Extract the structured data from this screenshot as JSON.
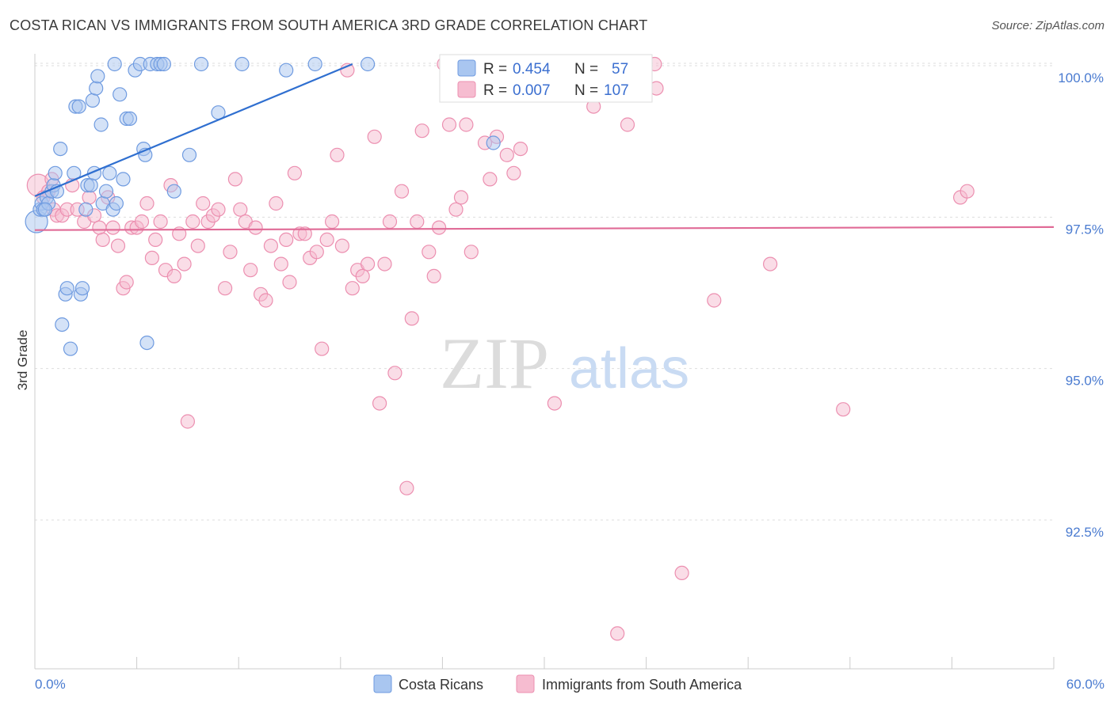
{
  "title": "COSTA RICAN VS IMMIGRANTS FROM SOUTH AMERICA 3RD GRADE CORRELATION CHART",
  "source": "Source: ZipAtlas.com",
  "watermark": {
    "part1": "ZIP",
    "part2": "atlas"
  },
  "colors": {
    "blue_fill": "#a9c6f0",
    "blue_stroke": "#6f9be0",
    "blue_line": "#2f6fd0",
    "pink_fill": "#f6bcd0",
    "pink_stroke": "#ec8fb0",
    "pink_line": "#e06a96",
    "axis_text": "#4a7bd0",
    "grid": "#dddddd"
  },
  "legend": {
    "rows": [
      {
        "r_label": "R = ",
        "r_value": "0.454",
        "n_label": "N = ",
        "n_value": "57"
      },
      {
        "r_label": "R = ",
        "r_value": "0.007",
        "n_label": "N = ",
        "n_value": "107"
      }
    ]
  },
  "bottom_legend": [
    "Costa Ricans",
    "Immigrants from South America"
  ],
  "chart_data": {
    "type": "scatter",
    "title": "COSTA RICAN VS IMMIGRANTS FROM SOUTH AMERICA 3RD GRADE CORRELATION CHART",
    "xlabel": "",
    "ylabel": "3rd Grade",
    "xlim": [
      0,
      60
    ],
    "ylim": [
      90.2,
      100.5
    ],
    "x_tick_labels": [
      "0.0%",
      "60.0%"
    ],
    "y_ticks": [
      92.5,
      95.0,
      97.5,
      100.0
    ],
    "y_tick_labels": [
      "92.5%",
      "95.0%",
      "97.5%",
      "100.0%"
    ],
    "series": [
      {
        "name": "Costa Ricans",
        "R": 0.454,
        "N": 57,
        "trend": [
          [
            0,
            97.82
          ],
          [
            18.7,
            100.0
          ]
        ],
        "points": [
          [
            0.1,
            97.4
          ],
          [
            0.3,
            97.6
          ],
          [
            0.4,
            97.7
          ],
          [
            0.5,
            97.6
          ],
          [
            0.7,
            97.8
          ],
          [
            0.8,
            97.7
          ],
          [
            1.0,
            97.9
          ],
          [
            1.1,
            98.0
          ],
          [
            1.2,
            98.2
          ],
          [
            1.5,
            98.6
          ],
          [
            1.6,
            95.7
          ],
          [
            1.8,
            96.2
          ],
          [
            1.9,
            96.3
          ],
          [
            2.1,
            95.3
          ],
          [
            2.3,
            98.2
          ],
          [
            2.4,
            99.3
          ],
          [
            2.6,
            99.3
          ],
          [
            2.7,
            96.2
          ],
          [
            2.8,
            96.3
          ],
          [
            3.0,
            97.6
          ],
          [
            3.1,
            98.0
          ],
          [
            3.3,
            98.0
          ],
          [
            3.4,
            99.4
          ],
          [
            3.5,
            98.2
          ],
          [
            3.6,
            99.6
          ],
          [
            3.7,
            99.8
          ],
          [
            3.9,
            99.0
          ],
          [
            4.0,
            97.7
          ],
          [
            4.2,
            97.9
          ],
          [
            4.4,
            98.2
          ],
          [
            4.6,
            97.6
          ],
          [
            4.8,
            97.7
          ],
          [
            4.7,
            100.0
          ],
          [
            5.0,
            99.5
          ],
          [
            5.2,
            98.1
          ],
          [
            5.4,
            99.1
          ],
          [
            5.6,
            99.1
          ],
          [
            5.9,
            99.9
          ],
          [
            6.2,
            100.0
          ],
          [
            6.4,
            98.6
          ],
          [
            6.5,
            98.5
          ],
          [
            6.6,
            95.4
          ],
          [
            6.8,
            100.0
          ],
          [
            7.2,
            100.0
          ],
          [
            7.4,
            100.0
          ],
          [
            7.6,
            100.0
          ],
          [
            8.2,
            97.9
          ],
          [
            9.8,
            100.0
          ],
          [
            9.1,
            98.5
          ],
          [
            10.8,
            99.2
          ],
          [
            12.2,
            100.0
          ],
          [
            14.8,
            99.9
          ],
          [
            16.5,
            100.0
          ],
          [
            19.6,
            100.0
          ],
          [
            27.0,
            98.7
          ],
          [
            0.6,
            97.6
          ],
          [
            1.3,
            97.9
          ]
        ]
      },
      {
        "name": "Immigrants from South America",
        "R": 0.007,
        "N": 107,
        "trend": [
          [
            0,
            97.26
          ],
          [
            60,
            97.31
          ]
        ],
        "points": [
          [
            0.2,
            98.0
          ],
          [
            0.5,
            97.8
          ],
          [
            0.8,
            97.9
          ],
          [
            1.1,
            97.6
          ],
          [
            1.3,
            97.5
          ],
          [
            1.6,
            97.5
          ],
          [
            1.9,
            97.6
          ],
          [
            2.2,
            98.0
          ],
          [
            2.5,
            97.6
          ],
          [
            2.9,
            97.4
          ],
          [
            3.2,
            97.8
          ],
          [
            3.5,
            97.5
          ],
          [
            3.8,
            97.3
          ],
          [
            4.0,
            97.1
          ],
          [
            4.3,
            97.8
          ],
          [
            4.6,
            97.3
          ],
          [
            4.9,
            97.0
          ],
          [
            5.2,
            96.3
          ],
          [
            5.4,
            96.4
          ],
          [
            5.7,
            97.3
          ],
          [
            6.0,
            97.3
          ],
          [
            6.3,
            97.4
          ],
          [
            6.6,
            97.7
          ],
          [
            6.9,
            96.8
          ],
          [
            7.1,
            97.1
          ],
          [
            7.4,
            97.4
          ],
          [
            7.7,
            96.6
          ],
          [
            8.0,
            98.0
          ],
          [
            8.2,
            96.5
          ],
          [
            8.5,
            97.2
          ],
          [
            8.8,
            96.7
          ],
          [
            9.0,
            94.1
          ],
          [
            9.3,
            97.4
          ],
          [
            9.6,
            97.0
          ],
          [
            9.9,
            97.7
          ],
          [
            10.2,
            97.4
          ],
          [
            10.5,
            97.5
          ],
          [
            10.8,
            97.6
          ],
          [
            11.2,
            96.3
          ],
          [
            11.5,
            96.9
          ],
          [
            11.8,
            98.1
          ],
          [
            12.1,
            97.6
          ],
          [
            12.4,
            97.4
          ],
          [
            12.7,
            96.6
          ],
          [
            13.0,
            97.3
          ],
          [
            13.3,
            96.2
          ],
          [
            13.6,
            96.1
          ],
          [
            13.9,
            97.0
          ],
          [
            14.2,
            97.7
          ],
          [
            14.5,
            96.7
          ],
          [
            14.8,
            97.1
          ],
          [
            15.0,
            96.4
          ],
          [
            15.3,
            98.2
          ],
          [
            15.6,
            97.2
          ],
          [
            15.9,
            97.2
          ],
          [
            16.2,
            96.8
          ],
          [
            16.6,
            96.9
          ],
          [
            16.9,
            95.3
          ],
          [
            17.2,
            97.1
          ],
          [
            17.5,
            97.4
          ],
          [
            17.8,
            98.5
          ],
          [
            18.1,
            97.0
          ],
          [
            18.4,
            99.9
          ],
          [
            18.7,
            96.3
          ],
          [
            19.0,
            96.6
          ],
          [
            19.3,
            96.5
          ],
          [
            19.6,
            96.7
          ],
          [
            20.0,
            98.8
          ],
          [
            20.3,
            94.4
          ],
          [
            20.6,
            96.7
          ],
          [
            20.9,
            97.4
          ],
          [
            21.2,
            94.9
          ],
          [
            21.6,
            97.9
          ],
          [
            21.9,
            93.0
          ],
          [
            22.2,
            95.8
          ],
          [
            22.5,
            97.4
          ],
          [
            22.8,
            98.9
          ],
          [
            23.2,
            96.9
          ],
          [
            23.5,
            96.5
          ],
          [
            23.8,
            97.3
          ],
          [
            24.1,
            100.0
          ],
          [
            24.4,
            99.0
          ],
          [
            24.8,
            97.6
          ],
          [
            25.1,
            97.8
          ],
          [
            25.4,
            99.0
          ],
          [
            25.7,
            96.9
          ],
          [
            26.5,
            98.7
          ],
          [
            26.8,
            98.1
          ],
          [
            27.2,
            98.8
          ],
          [
            27.8,
            98.5
          ],
          [
            28.2,
            98.2
          ],
          [
            28.6,
            98.6
          ],
          [
            30.6,
            94.4
          ],
          [
            32.9,
            99.3
          ],
          [
            33.2,
            99.9
          ],
          [
            33.6,
            99.8
          ],
          [
            34.3,
            90.6
          ],
          [
            34.9,
            99.0
          ],
          [
            36.5,
            100.0
          ],
          [
            36.6,
            99.6
          ],
          [
            38.1,
            91.6
          ],
          [
            40.0,
            96.1
          ],
          [
            43.3,
            96.7
          ],
          [
            47.6,
            94.3
          ],
          [
            54.5,
            97.8
          ],
          [
            54.9,
            97.9
          ],
          [
            1.0,
            98.1
          ]
        ]
      }
    ]
  }
}
